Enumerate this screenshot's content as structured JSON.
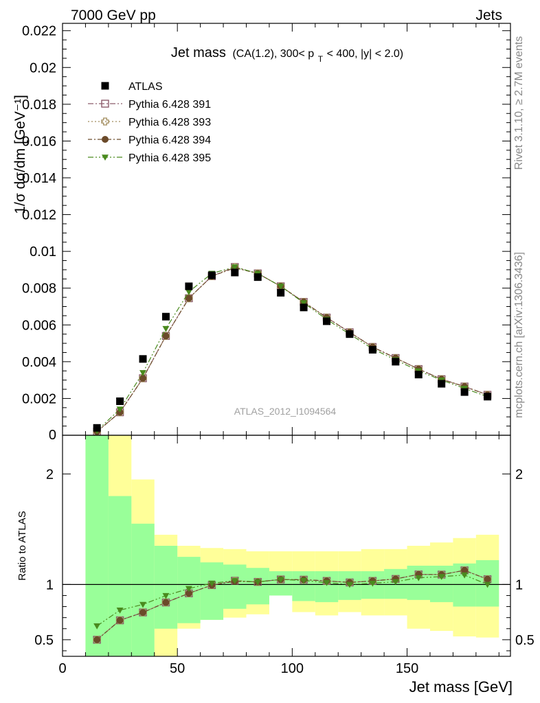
{
  "header": {
    "left": "7000 GeV pp",
    "right": "Jets"
  },
  "side_labels": {
    "rivet": "Rivet 3.1.10, ≥ 2.7M events",
    "mcplots": "mcplots.cern.ch [arXiv:1306.3436]"
  },
  "chart_data": {
    "type": "scatter",
    "title_main": "Jet mass",
    "title_sub": "(CA(1.2), 300< p",
    "title_sub_sub": "T",
    "title_sub_tail": " < 400, |y| < 2.0)",
    "watermark": "ATLAS_2012_I1094564",
    "xlabel": "Jet mass [GeV]",
    "ylabel_main": "1/σ dσ/dm [GeV⁻¹]",
    "ylabel_ratio": "Ratio to ATLAS",
    "xlim": [
      0,
      195
    ],
    "ylim_main": [
      0,
      0.0224
    ],
    "ylim_ratio": [
      0.35,
      2.35
    ],
    "x_ticks": [
      "0",
      "50",
      "100",
      "150"
    ],
    "y_ticks_main": [
      "0.002",
      "0.004",
      "0.006",
      "0.008",
      "0.01",
      "0.012",
      "0.014",
      "0.016",
      "0.018",
      "0.02",
      "0.022"
    ],
    "y_ticks_ratio": [
      "0.5",
      "1",
      "2"
    ],
    "y_zero_label": "0",
    "bin_edges": [
      10,
      20,
      30,
      40,
      50,
      60,
      70,
      80,
      90,
      100,
      110,
      120,
      130,
      140,
      150,
      160,
      170,
      180,
      190
    ],
    "x": [
      15,
      25,
      35,
      45,
      55,
      65,
      75,
      85,
      95,
      105,
      115,
      125,
      135,
      145,
      155,
      165,
      175,
      185
    ],
    "data": {
      "name": "ATLAS",
      "values": [
        0.0004,
        0.00185,
        0.00415,
        0.00645,
        0.0081,
        0.0087,
        0.00885,
        0.0086,
        0.00775,
        0.00695,
        0.0062,
        0.0055,
        0.00465,
        0.004,
        0.0033,
        0.0028,
        0.00235,
        0.0021
      ]
    },
    "band_green": [
      [
        0.35,
        2.35
      ],
      [
        0.35,
        1.8
      ],
      [
        0.35,
        1.55
      ],
      [
        0.6,
        1.35
      ],
      [
        0.65,
        1.25
      ],
      [
        0.68,
        1.2
      ],
      [
        0.78,
        1.18
      ],
      [
        0.82,
        1.15
      ],
      [
        0.9,
        1.12
      ],
      [
        0.85,
        1.12
      ],
      [
        0.84,
        1.12
      ],
      [
        0.86,
        1.12
      ],
      [
        0.87,
        1.12
      ],
      [
        0.87,
        1.14
      ],
      [
        0.86,
        1.17
      ],
      [
        0.84,
        1.17
      ],
      [
        0.8,
        1.19
      ],
      [
        0.8,
        1.22
      ]
    ],
    "band_yellow": [
      [
        0.35,
        2.35
      ],
      [
        0.35,
        2.35
      ],
      [
        0.35,
        1.95
      ],
      [
        0.35,
        1.45
      ],
      [
        0.6,
        1.35
      ],
      [
        0.68,
        1.33
      ],
      [
        0.7,
        1.32
      ],
      [
        0.73,
        1.3
      ],
      [
        0.93,
        1.3
      ],
      [
        0.75,
        1.3
      ],
      [
        0.72,
        1.3
      ],
      [
        0.75,
        1.3
      ],
      [
        0.72,
        1.32
      ],
      [
        0.72,
        1.32
      ],
      [
        0.6,
        1.35
      ],
      [
        0.58,
        1.38
      ],
      [
        0.53,
        1.42
      ],
      [
        0.52,
        1.45
      ]
    ],
    "series": [
      {
        "name": "Pythia 6.428 391",
        "color": "#8b5a6a",
        "marker": "square-open",
        "values": [
          0.0002,
          0.00125,
          0.0031,
          0.0054,
          0.00745,
          0.00865,
          0.00915,
          0.0088,
          0.0081,
          0.00725,
          0.0064,
          0.0056,
          0.0048,
          0.0042,
          0.0036,
          0.00305,
          0.00265,
          0.0022
        ]
      },
      {
        "name": "Pythia 6.428 393",
        "color": "#a08a5a",
        "marker": "plus-open",
        "values": [
          0.0002,
          0.00125,
          0.0031,
          0.0054,
          0.00745,
          0.00865,
          0.00915,
          0.0088,
          0.0081,
          0.00725,
          0.0064,
          0.0056,
          0.0048,
          0.0042,
          0.0036,
          0.00305,
          0.00265,
          0.0022
        ]
      },
      {
        "name": "Pythia 6.428 394",
        "color": "#6b4a2a",
        "marker": "circle",
        "values": [
          0.0002,
          0.00125,
          0.0031,
          0.0054,
          0.00745,
          0.00865,
          0.0091,
          0.0088,
          0.0081,
          0.00725,
          0.0064,
          0.0056,
          0.0048,
          0.0042,
          0.0036,
          0.00305,
          0.00265,
          0.0022
        ]
      },
      {
        "name": "Pythia 6.428 395",
        "color": "#4a8a1e",
        "marker": "triangle-down",
        "values": [
          0.00025,
          0.00142,
          0.0034,
          0.0058,
          0.0078,
          0.0088,
          0.00915,
          0.0088,
          0.0081,
          0.0072,
          0.0063,
          0.0055,
          0.0047,
          0.0041,
          0.0035,
          0.003,
          0.00255,
          0.0021
        ]
      }
    ]
  }
}
